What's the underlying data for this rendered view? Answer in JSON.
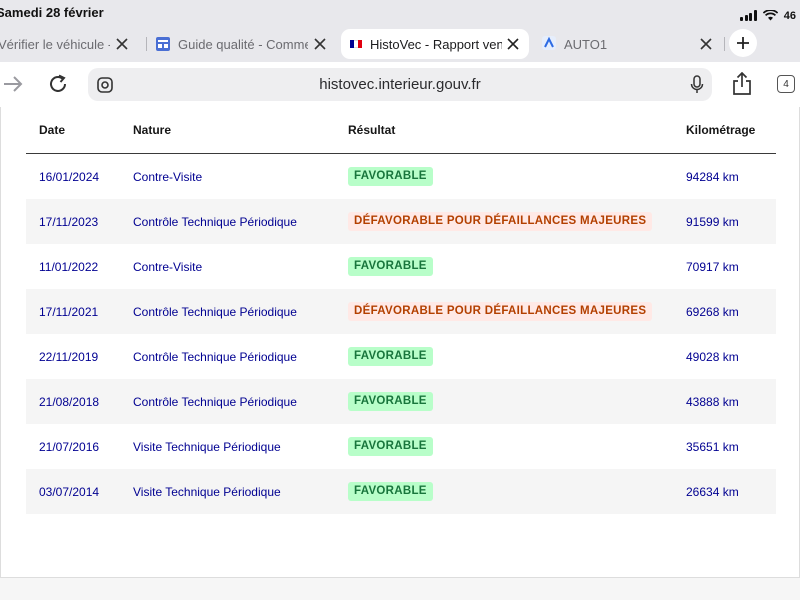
{
  "status_bar": {
    "time": "Samedi 28 février",
    "battery": "46"
  },
  "tabs": [
    {
      "title": "Vérifier le véhicule - Ad",
      "active": false
    },
    {
      "title": "Guide qualité - Commen",
      "active": false
    },
    {
      "title": "HistoVec - Rapport vendeur",
      "active": true
    },
    {
      "title": "AUTO1",
      "active": false
    }
  ],
  "toolbar": {
    "url": "histovec.interieur.gouv.fr",
    "tabs_count": "4"
  },
  "table": {
    "headers": {
      "date": "Date",
      "nature": "Nature",
      "resultat": "Résultat",
      "kilometrage": "Kilométrage"
    },
    "rows": [
      {
        "date": "16/01/2024",
        "nature": "Contre-Visite",
        "resultat": "FAVORABLE",
        "status": "favorable",
        "km": "94284 km"
      },
      {
        "date": "17/11/2023",
        "nature": "Contrôle Technique Périodique",
        "resultat": "DÉFAVORABLE POUR DÉFAILLANCES MAJEURES",
        "status": "defavorable",
        "km": "91599 km"
      },
      {
        "date": "11/01/2022",
        "nature": "Contre-Visite",
        "resultat": "FAVORABLE",
        "status": "favorable",
        "km": "70917 km"
      },
      {
        "date": "17/11/2021",
        "nature": "Contrôle Technique Périodique",
        "resultat": "DÉFAVORABLE POUR DÉFAILLANCES MAJEURES",
        "status": "defavorable",
        "km": "69268 km"
      },
      {
        "date": "22/11/2019",
        "nature": "Contrôle Technique Périodique",
        "resultat": "FAVORABLE",
        "status": "favorable",
        "km": "49028 km"
      },
      {
        "date": "21/08/2018",
        "nature": "Contrôle Technique Périodique",
        "resultat": "FAVORABLE",
        "status": "favorable",
        "km": "43888 km"
      },
      {
        "date": "21/07/2016",
        "nature": "Visite Technique Périodique",
        "resultat": "FAVORABLE",
        "status": "favorable",
        "km": "35651 km"
      },
      {
        "date": "03/07/2014",
        "nature": "Visite Technique Périodique",
        "resultat": "FAVORABLE",
        "status": "favorable",
        "km": "26634 km"
      }
    ]
  },
  "colors": {
    "link_text": "#000091",
    "favorable_bg": "#b8fec9",
    "favorable_text": "#18753c",
    "defavorable_bg": "#ffe9e6",
    "defavorable_text": "#b34000"
  }
}
